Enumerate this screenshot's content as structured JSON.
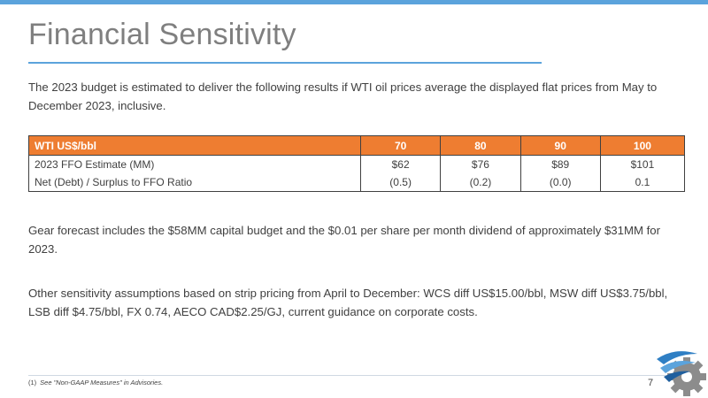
{
  "slide": {
    "title": "Financial Sensitivity",
    "intro": "The 2023 budget is estimated to deliver the following results if WTI oil prices average the displayed flat prices from May to December 2023, inclusive.",
    "forecast_note": "Gear forecast includes the $58MM capital budget and the $0.01 per share per month dividend of approximately $31MM for 2023.",
    "assumptions": "Other sensitivity assumptions based on strip pricing from April to December: WCS diff US$15.00/bbl, MSW diff US$3.75/bbl, LSB diff $4.75/bbl, FX 0.74, AECO CAD$2.25/GJ, current guidance on corporate costs.",
    "footnote_num": "(1)",
    "footnote_text": "See \"Non-GAAP Measures\" in Advisories.",
    "page_number": "7",
    "logo_icon": "gear-company-logo-icon"
  },
  "table": {
    "header": [
      "WTI US$/bbl",
      "70",
      "80",
      "90",
      "100"
    ],
    "rows": [
      [
        "2023 FFO Estimate (MM)",
        "$62",
        "$76",
        "$89",
        "$101"
      ],
      [
        "Net (Debt) / Surplus to FFO Ratio",
        "(0.5)",
        "(0.2)",
        "(0.0)",
        "0.1"
      ]
    ]
  },
  "colors": {
    "accent_blue": "#5ba3dc",
    "table_header_orange": "#ee7d31",
    "title_gray": "#7f7f7f",
    "body_text": "#404040"
  }
}
